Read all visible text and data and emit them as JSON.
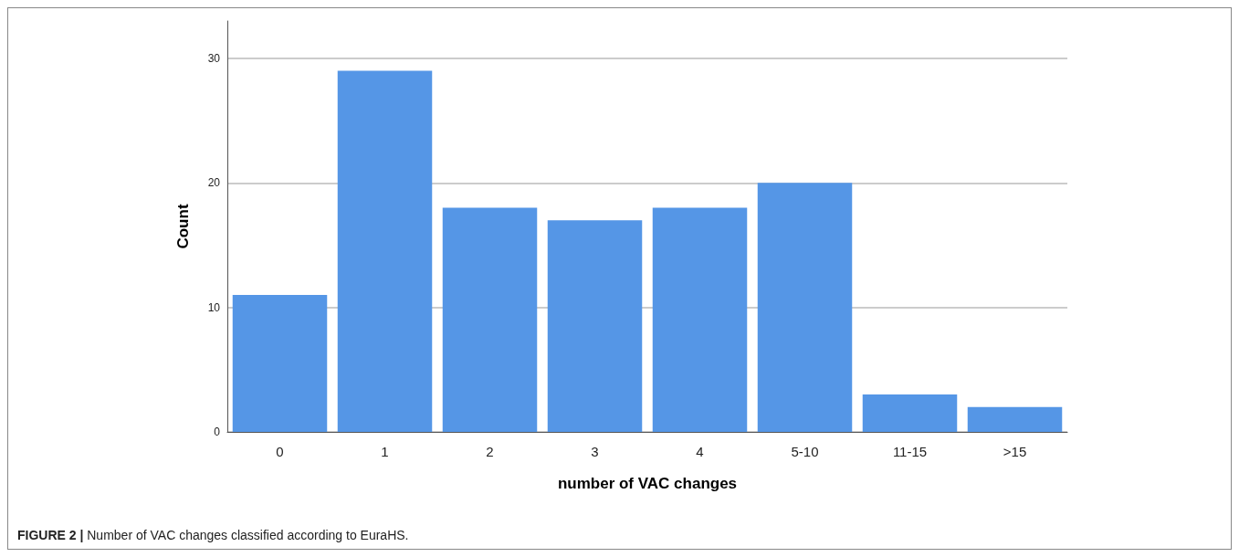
{
  "chart_data": {
    "type": "bar",
    "xlabel": "number of VAC changes",
    "ylabel": "Count",
    "categories": [
      "0",
      "1",
      "2",
      "3",
      "4",
      "5-10",
      "11-15",
      ">15"
    ],
    "values": [
      11,
      29,
      18,
      17,
      18,
      20,
      3,
      2
    ],
    "color": "#5596e6",
    "ylim": [
      0,
      33
    ],
    "yticks": [
      0,
      10,
      20,
      30
    ],
    "grid": "y",
    "annotations": [
      "FIGURE 2 | Number of VAC changes classified according to EuraHS."
    ]
  }
}
